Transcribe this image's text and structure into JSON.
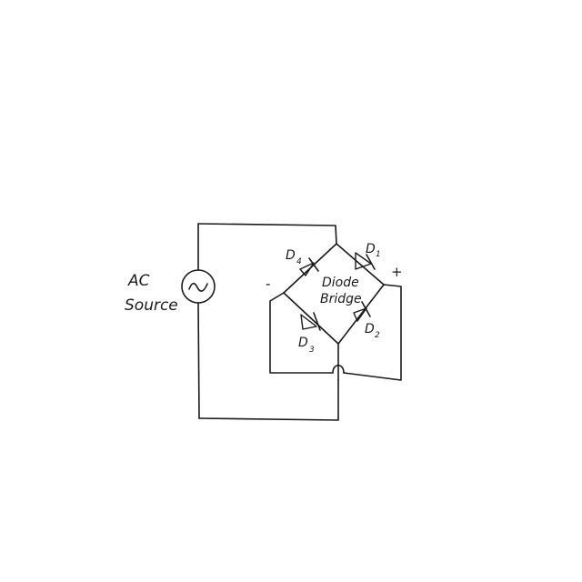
{
  "source": {
    "line1": "AC",
    "line2": "Source"
  },
  "bridge": {
    "line1": "Diode",
    "line2": "Bridge"
  },
  "diodes": {
    "d1": {
      "letter": "D",
      "sub": "1"
    },
    "d2": {
      "letter": "D",
      "sub": "2"
    },
    "d3": {
      "letter": "D",
      "sub": "3"
    },
    "d4": {
      "letter": "D",
      "sub": "4"
    }
  },
  "terminals": {
    "negative": "-",
    "positive": "+"
  },
  "colors": {
    "ink": "#1a1a1a",
    "paper": "#ffffff"
  }
}
